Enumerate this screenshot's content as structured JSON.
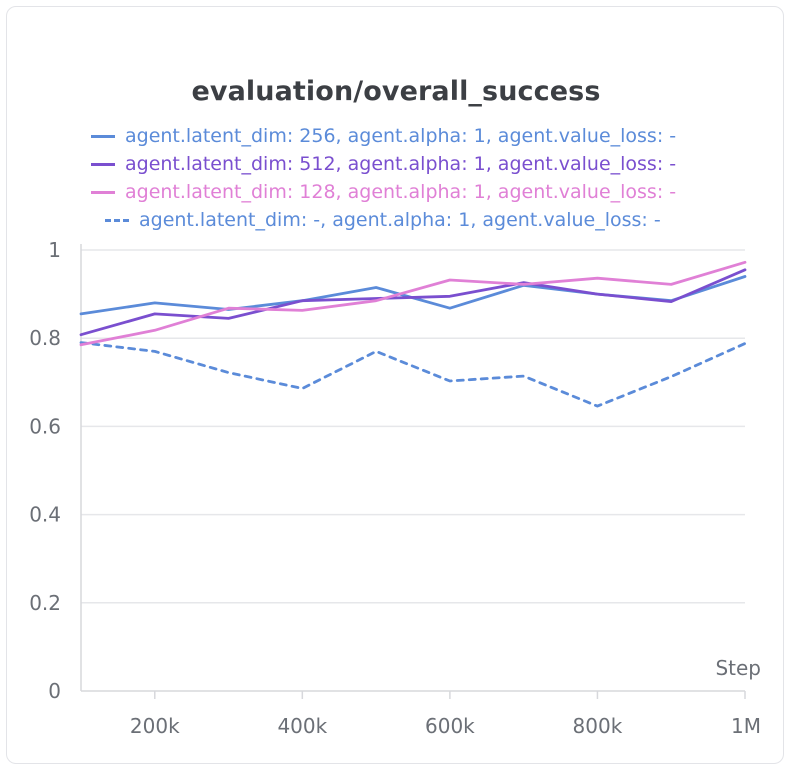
{
  "chart_data": {
    "type": "line",
    "title": "evaluation/overall_success",
    "xlabel": "Step",
    "ylabel": "",
    "xlim": [
      100000,
      1000000
    ],
    "ylim": [
      0,
      1
    ],
    "x_ticks": [
      200000,
      400000,
      600000,
      800000,
      1000000
    ],
    "x_tick_labels": [
      "200k",
      "400k",
      "600k",
      "800k",
      "1M"
    ],
    "y_ticks": [
      0,
      0.2,
      0.4,
      0.6,
      0.8,
      1
    ],
    "y_tick_labels": [
      "0",
      "0.2",
      "0.4",
      "0.6",
      "0.8",
      "1"
    ],
    "grid": "horizontal",
    "legend_position": "top",
    "x": [
      100000,
      200000,
      300000,
      400000,
      500000,
      600000,
      700000,
      800000,
      900000,
      1000000
    ],
    "series": [
      {
        "name": "agent.latent_dim: 256, agent.alpha: 1, agent.value_loss: -",
        "color": "#5b8bd9",
        "style": "solid",
        "values": [
          0.855,
          0.88,
          0.865,
          0.885,
          0.915,
          0.868,
          0.92,
          0.9,
          0.885,
          0.94
        ]
      },
      {
        "name": "agent.latent_dim: 512, agent.alpha: 1, agent.value_loss: -",
        "color": "#7a4fcf",
        "style": "solid",
        "values": [
          0.808,
          0.855,
          0.845,
          0.885,
          0.89,
          0.895,
          0.926,
          0.9,
          0.883,
          0.955
        ]
      },
      {
        "name": "agent.latent_dim: 128, agent.alpha: 1, agent.value_loss: -",
        "color": "#e080d6",
        "style": "solid",
        "values": [
          0.785,
          0.818,
          0.868,
          0.863,
          0.885,
          0.932,
          0.922,
          0.936,
          0.922,
          0.972
        ]
      },
      {
        "name": "agent.latent_dim: -, agent.alpha: 1, agent.value_loss: -",
        "color": "#5b8bd9",
        "style": "dashed",
        "values": [
          0.79,
          0.77,
          0.722,
          0.686,
          0.77,
          0.703,
          0.714,
          0.646,
          0.713,
          0.788
        ]
      }
    ]
  }
}
